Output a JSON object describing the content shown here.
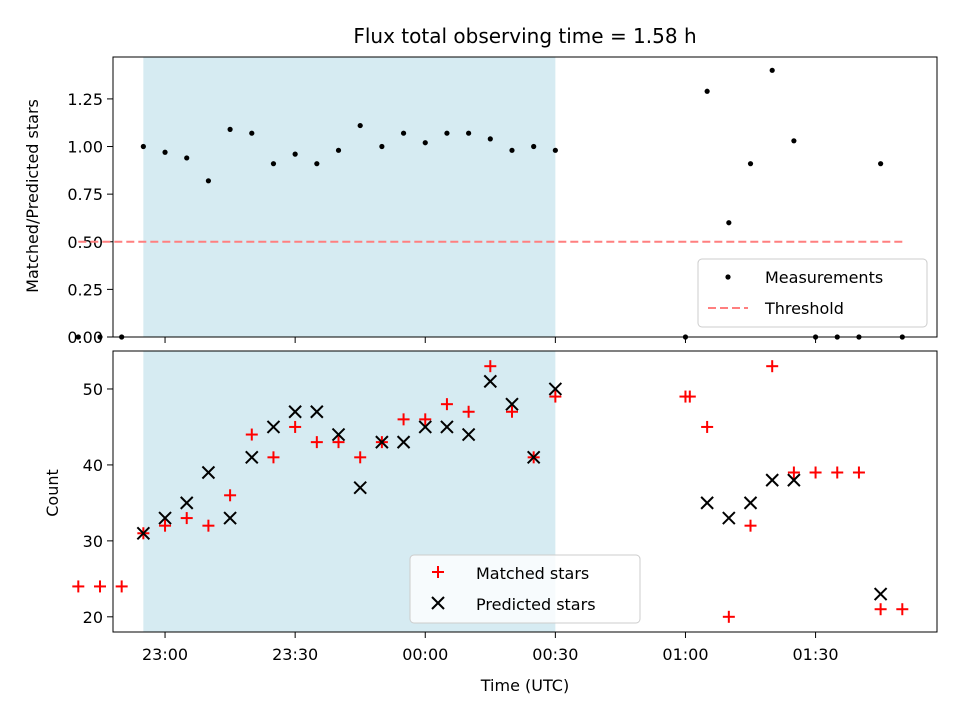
{
  "chart_data": {
    "title": "Flux total observing time = 1.58 h",
    "xlabel": "Time (UTC)",
    "x_unit": "minutes relative to 00:00 UTC",
    "xlim": [
      -72,
      118
    ],
    "xticks": [
      {
        "value": -60,
        "label": "23:00"
      },
      {
        "value": -30,
        "label": "23:30"
      },
      {
        "value": 0,
        "label": "00:00"
      },
      {
        "value": 30,
        "label": "00:30"
      },
      {
        "value": 60,
        "label": "01:00"
      },
      {
        "value": 90,
        "label": "01:30"
      }
    ],
    "shaded_interval": {
      "start": -65,
      "end": 30,
      "color": "#add8e6"
    },
    "panels": [
      {
        "type": "scatter",
        "ylabel": "Matched/Predicted stars",
        "ylim": [
          0,
          1.47
        ],
        "yticks": [
          "0.00",
          "0.25",
          "0.50",
          "0.75",
          "1.00",
          "1.25"
        ],
        "ytick_values": [
          0,
          0.25,
          0.5,
          0.75,
          1.0,
          1.25
        ],
        "legend_position": "lower-right",
        "series": [
          {
            "name": "Measurements",
            "marker": "dot",
            "color": "#000000",
            "x": [
              -80,
              -75,
              -70,
              -65,
              -60,
              -55,
              -50,
              -45,
              -40,
              -35,
              -30,
              -25,
              -20,
              -15,
              -10,
              -5,
              0,
              5,
              10,
              15,
              20,
              25,
              30,
              60,
              65,
              70,
              75,
              80,
              85,
              90,
              95,
              100,
              105,
              110
            ],
            "y": [
              0,
              0,
              0,
              1.0,
              0.97,
              0.94,
              0.82,
              1.09,
              1.07,
              0.91,
              0.96,
              0.91,
              0.98,
              1.11,
              1.0,
              1.07,
              1.02,
              1.07,
              1.07,
              1.04,
              0.98,
              1.0,
              0.98,
              0,
              1.29,
              0.6,
              0.91,
              1.4,
              1.03,
              0,
              0,
              0,
              0.91,
              0
            ]
          },
          {
            "name": "Threshold",
            "style": "dashed",
            "color": "#ff7f7f",
            "x": [
              -80,
              110
            ],
            "y": [
              0.5,
              0.5
            ]
          }
        ]
      },
      {
        "type": "scatter",
        "ylabel": "Count",
        "ylim": [
          18,
          55
        ],
        "yticks": [
          "20",
          "30",
          "40",
          "50"
        ],
        "ytick_values": [
          20,
          30,
          40,
          50
        ],
        "legend_position": "bottom-center",
        "series": [
          {
            "name": "Matched stars",
            "marker": "plus",
            "color": "#ff0000",
            "x": [
              -80,
              -75,
              -70,
              -65,
              -60,
              -55,
              -50,
              -45,
              -40,
              -35,
              -30,
              -25,
              -20,
              -15,
              -10,
              -5,
              0,
              5,
              10,
              15,
              20,
              25,
              30,
              60,
              61,
              65,
              70,
              75,
              80,
              85,
              90,
              95,
              100,
              105,
              110
            ],
            "y": [
              24,
              24,
              24,
              31,
              32,
              33,
              32,
              36,
              44,
              41,
              45,
              43,
              43,
              41,
              43,
              46,
              46,
              48,
              47,
              53,
              47,
              41,
              49,
              49,
              49,
              45,
              20,
              32,
              53,
              39,
              39,
              39,
              39,
              21,
              21
            ]
          },
          {
            "name": "Predicted stars",
            "marker": "x",
            "color": "#000000",
            "x": [
              -65,
              -60,
              -55,
              -50,
              -45,
              -40,
              -35,
              -30,
              -25,
              -20,
              -15,
              -10,
              -5,
              0,
              5,
              10,
              15,
              20,
              25,
              30,
              65,
              70,
              75,
              80,
              85,
              105
            ],
            "y": [
              31,
              33,
              35,
              39,
              33,
              41,
              45,
              47,
              47,
              44,
              37,
              43,
              43,
              45,
              45,
              44,
              51,
              48,
              41,
              50,
              35,
              33,
              35,
              38,
              38,
              23
            ]
          }
        ]
      }
    ]
  }
}
